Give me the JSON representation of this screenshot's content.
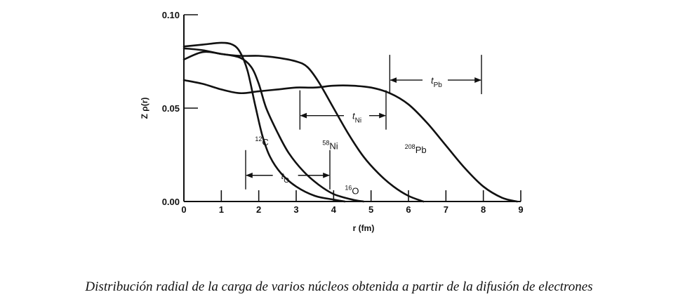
{
  "chart_data": {
    "type": "line",
    "title": "",
    "xlabel": "r (fm)",
    "ylabel": "Z ρ(r)",
    "xlim": [
      0,
      9
    ],
    "ylim": [
      0,
      0.1
    ],
    "x_ticks": [
      "0",
      "1",
      "2",
      "3",
      "4",
      "5",
      "6",
      "7",
      "8",
      "9"
    ],
    "y_ticks": [
      "0.00",
      "0.05",
      "0.10"
    ],
    "grid": false,
    "legend": "none",
    "series": [
      {
        "name": "12C",
        "x": [
          0,
          0.5,
          1.0,
          1.3,
          1.5,
          1.7,
          1.9,
          2.1,
          2.3,
          2.6,
          3.0,
          3.5,
          4.0,
          4.3
        ],
        "y": [
          0.083,
          0.084,
          0.085,
          0.084,
          0.08,
          0.07,
          0.052,
          0.035,
          0.024,
          0.015,
          0.008,
          0.003,
          0.001,
          0.0
        ]
      },
      {
        "name": "16O",
        "x": [
          0,
          0.5,
          1.0,
          1.5,
          1.8,
          2.0,
          2.2,
          2.5,
          2.8,
          3.2,
          3.6,
          4.0,
          4.5,
          4.8
        ],
        "y": [
          0.076,
          0.08,
          0.079,
          0.077,
          0.072,
          0.063,
          0.05,
          0.037,
          0.026,
          0.016,
          0.009,
          0.004,
          0.001,
          0.0
        ]
      },
      {
        "name": "58Ni",
        "x": [
          0,
          0.5,
          1.0,
          1.5,
          2.0,
          2.5,
          3.0,
          3.3,
          3.6,
          4.0,
          4.4,
          4.8,
          5.2,
          5.6,
          6.0,
          6.4
        ],
        "y": [
          0.082,
          0.081,
          0.079,
          0.078,
          0.078,
          0.077,
          0.075,
          0.072,
          0.064,
          0.05,
          0.036,
          0.024,
          0.015,
          0.008,
          0.003,
          0.0
        ]
      },
      {
        "name": "208Pb",
        "x": [
          0,
          0.5,
          1.0,
          1.5,
          2.0,
          2.5,
          3.0,
          3.5,
          4.0,
          4.5,
          5.0,
          5.5,
          6.0,
          6.5,
          7.0,
          7.5,
          8.0,
          8.5,
          8.9
        ],
        "y": [
          0.065,
          0.063,
          0.06,
          0.058,
          0.059,
          0.06,
          0.061,
          0.061,
          0.062,
          0.062,
          0.061,
          0.058,
          0.052,
          0.042,
          0.03,
          0.018,
          0.008,
          0.002,
          0.0
        ]
      }
    ],
    "labels": [
      {
        "sup": "12",
        "base": "C",
        "x": 1.9,
        "y": 0.03
      },
      {
        "sup": "58",
        "base": "Ni",
        "x": 3.7,
        "y": 0.028
      },
      {
        "sup": "208",
        "base": "Pb",
        "x": 5.9,
        "y": 0.026
      },
      {
        "sup": "16",
        "base": "O",
        "x": 4.3,
        "y": 0.004
      }
    ],
    "thickness_markers": [
      {
        "name": "t",
        "sub": "O",
        "x1": 1.65,
        "x2": 3.9,
        "y": 0.014,
        "label_x": 2.6,
        "label_y": 0.013
      },
      {
        "name": "t",
        "sub": "Ni",
        "x1": 3.1,
        "x2": 5.4,
        "y": 0.046,
        "label_x": 4.5,
        "label_y": 0.045
      },
      {
        "name": "t",
        "sub": "Pb",
        "x1": 5.5,
        "x2": 7.95,
        "y": 0.065,
        "label_x": 6.6,
        "label_y": 0.064
      }
    ]
  },
  "caption": "Distribución radial de la carga de varios núcleos obtenida a partir de la difusión de electrones"
}
